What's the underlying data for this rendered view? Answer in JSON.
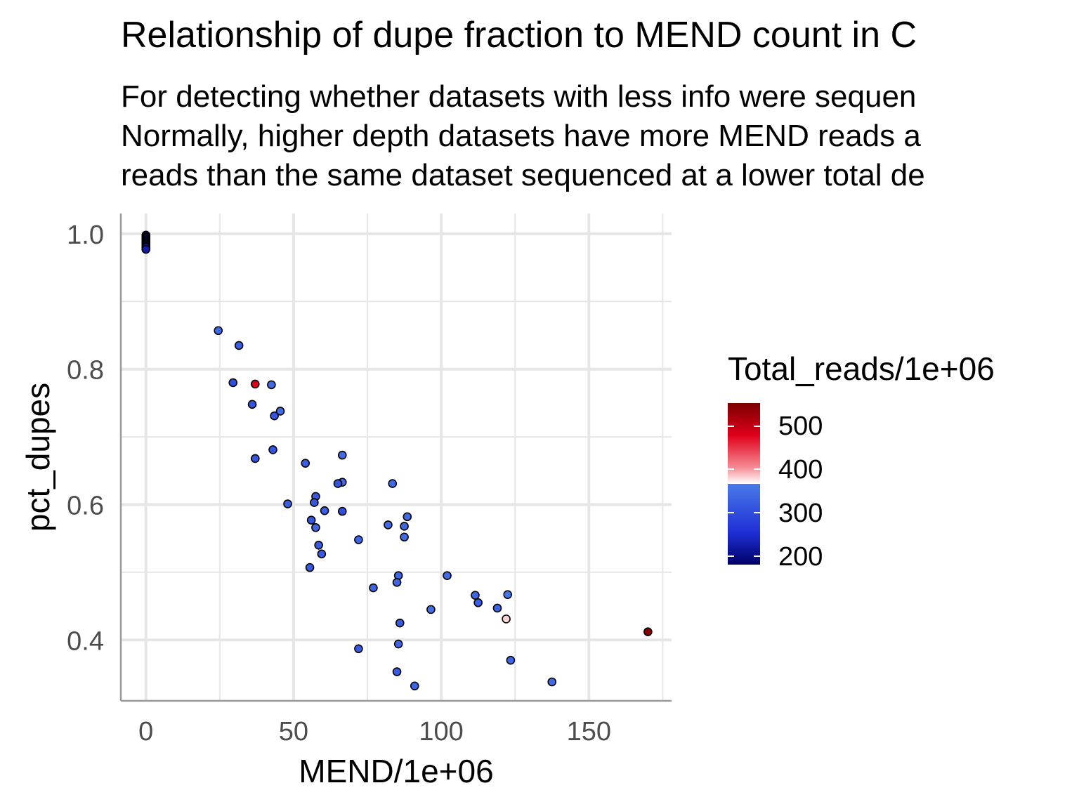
{
  "chart_data": {
    "type": "scatter",
    "title": "Relationship of dupe fraction to MEND count in C",
    "subtitle_lines": [
      "For detecting whether datasets with less info were sequen",
      "Normally, higher depth datasets have more MEND reads a",
      "reads than the same dataset sequenced at a lower total de"
    ],
    "xlabel": "MEND/1e+06",
    "ylabel": "pct_dupes",
    "xlim": [
      -8.5,
      178
    ],
    "ylim": [
      0.31,
      1.03
    ],
    "x_ticks": [
      0,
      50,
      100,
      150
    ],
    "x_tick_labels": [
      "0",
      "50",
      "100",
      "150"
    ],
    "y_ticks": [
      0.4,
      0.6,
      0.8,
      1.0
    ],
    "y_tick_labels": [
      "0.4",
      "0.6",
      "0.8",
      "1.0"
    ],
    "grid": true,
    "legend": {
      "title": "Total_reads/1e+06",
      "placement": "right",
      "labels": [
        "500",
        "400",
        "300",
        "200"
      ],
      "values": [
        500,
        400,
        300,
        200
      ],
      "range": [
        180,
        553
      ]
    },
    "colors": {
      "low": "#000066",
      "mid_low": "#4a7ae8",
      "mid_high": "#ffffff",
      "high": "#7a0000",
      "grid": "#e6e6e6",
      "axis": "#999999"
    },
    "points": [
      {
        "x": 0,
        "y": 0.998,
        "color_value": 215
      },
      {
        "x": 0,
        "y": 0.996,
        "color_value": 220
      },
      {
        "x": 0,
        "y": 0.994,
        "color_value": 205
      },
      {
        "x": 0,
        "y": 0.992,
        "color_value": 225
      },
      {
        "x": 0,
        "y": 0.99,
        "color_value": 210
      },
      {
        "x": 0,
        "y": 0.988,
        "color_value": 230
      },
      {
        "x": 0,
        "y": 0.986,
        "color_value": 215
      },
      {
        "x": 0,
        "y": 0.984,
        "color_value": 225
      },
      {
        "x": 0,
        "y": 0.982,
        "color_value": 235
      },
      {
        "x": 0,
        "y": 0.98,
        "color_value": 220
      },
      {
        "x": 0,
        "y": 0.977,
        "color_value": 210
      },
      {
        "x": 24.5,
        "y": 0.857,
        "color_value": 285
      },
      {
        "x": 31.5,
        "y": 0.835,
        "color_value": 275
      },
      {
        "x": 29.5,
        "y": 0.78,
        "color_value": 260
      },
      {
        "x": 37,
        "y": 0.778,
        "color_value": 470
      },
      {
        "x": 42.5,
        "y": 0.777,
        "color_value": 285
      },
      {
        "x": 36,
        "y": 0.748,
        "color_value": 265
      },
      {
        "x": 45.5,
        "y": 0.738,
        "color_value": 285
      },
      {
        "x": 43.5,
        "y": 0.731,
        "color_value": 265
      },
      {
        "x": 43,
        "y": 0.681,
        "color_value": 265
      },
      {
        "x": 37,
        "y": 0.668,
        "color_value": 265
      },
      {
        "x": 54,
        "y": 0.661,
        "color_value": 275
      },
      {
        "x": 66.5,
        "y": 0.673,
        "color_value": 285
      },
      {
        "x": 66.5,
        "y": 0.633,
        "color_value": 285
      },
      {
        "x": 65,
        "y": 0.631,
        "color_value": 265
      },
      {
        "x": 83.5,
        "y": 0.631,
        "color_value": 285
      },
      {
        "x": 57.5,
        "y": 0.612,
        "color_value": 270
      },
      {
        "x": 57,
        "y": 0.603,
        "color_value": 265
      },
      {
        "x": 48,
        "y": 0.601,
        "color_value": 275
      },
      {
        "x": 60.5,
        "y": 0.591,
        "color_value": 275
      },
      {
        "x": 66.5,
        "y": 0.59,
        "color_value": 260
      },
      {
        "x": 88.5,
        "y": 0.582,
        "color_value": 285
      },
      {
        "x": 56,
        "y": 0.577,
        "color_value": 265
      },
      {
        "x": 82,
        "y": 0.57,
        "color_value": 285
      },
      {
        "x": 87.5,
        "y": 0.568,
        "color_value": 280
      },
      {
        "x": 57.5,
        "y": 0.566,
        "color_value": 280
      },
      {
        "x": 87.5,
        "y": 0.552,
        "color_value": 285
      },
      {
        "x": 72,
        "y": 0.548,
        "color_value": 280
      },
      {
        "x": 58.5,
        "y": 0.54,
        "color_value": 270
      },
      {
        "x": 59.5,
        "y": 0.527,
        "color_value": 270
      },
      {
        "x": 55.5,
        "y": 0.507,
        "color_value": 270
      },
      {
        "x": 85.5,
        "y": 0.495,
        "color_value": 280
      },
      {
        "x": 102,
        "y": 0.495,
        "color_value": 285
      },
      {
        "x": 85,
        "y": 0.485,
        "color_value": 280
      },
      {
        "x": 77,
        "y": 0.477,
        "color_value": 280
      },
      {
        "x": 111.5,
        "y": 0.466,
        "color_value": 280
      },
      {
        "x": 122.5,
        "y": 0.467,
        "color_value": 295
      },
      {
        "x": 112.5,
        "y": 0.455,
        "color_value": 275
      },
      {
        "x": 119,
        "y": 0.447,
        "color_value": 280
      },
      {
        "x": 96.5,
        "y": 0.445,
        "color_value": 290
      },
      {
        "x": 122,
        "y": 0.431,
        "color_value": 380
      },
      {
        "x": 86,
        "y": 0.425,
        "color_value": 270
      },
      {
        "x": 170,
        "y": 0.412,
        "color_value": 545
      },
      {
        "x": 85.5,
        "y": 0.394,
        "color_value": 280
      },
      {
        "x": 72,
        "y": 0.387,
        "color_value": 270
      },
      {
        "x": 123.5,
        "y": 0.37,
        "color_value": 280
      },
      {
        "x": 85,
        "y": 0.353,
        "color_value": 270
      },
      {
        "x": 137.5,
        "y": 0.338,
        "color_value": 285
      },
      {
        "x": 91,
        "y": 0.332,
        "color_value": 280
      }
    ]
  }
}
